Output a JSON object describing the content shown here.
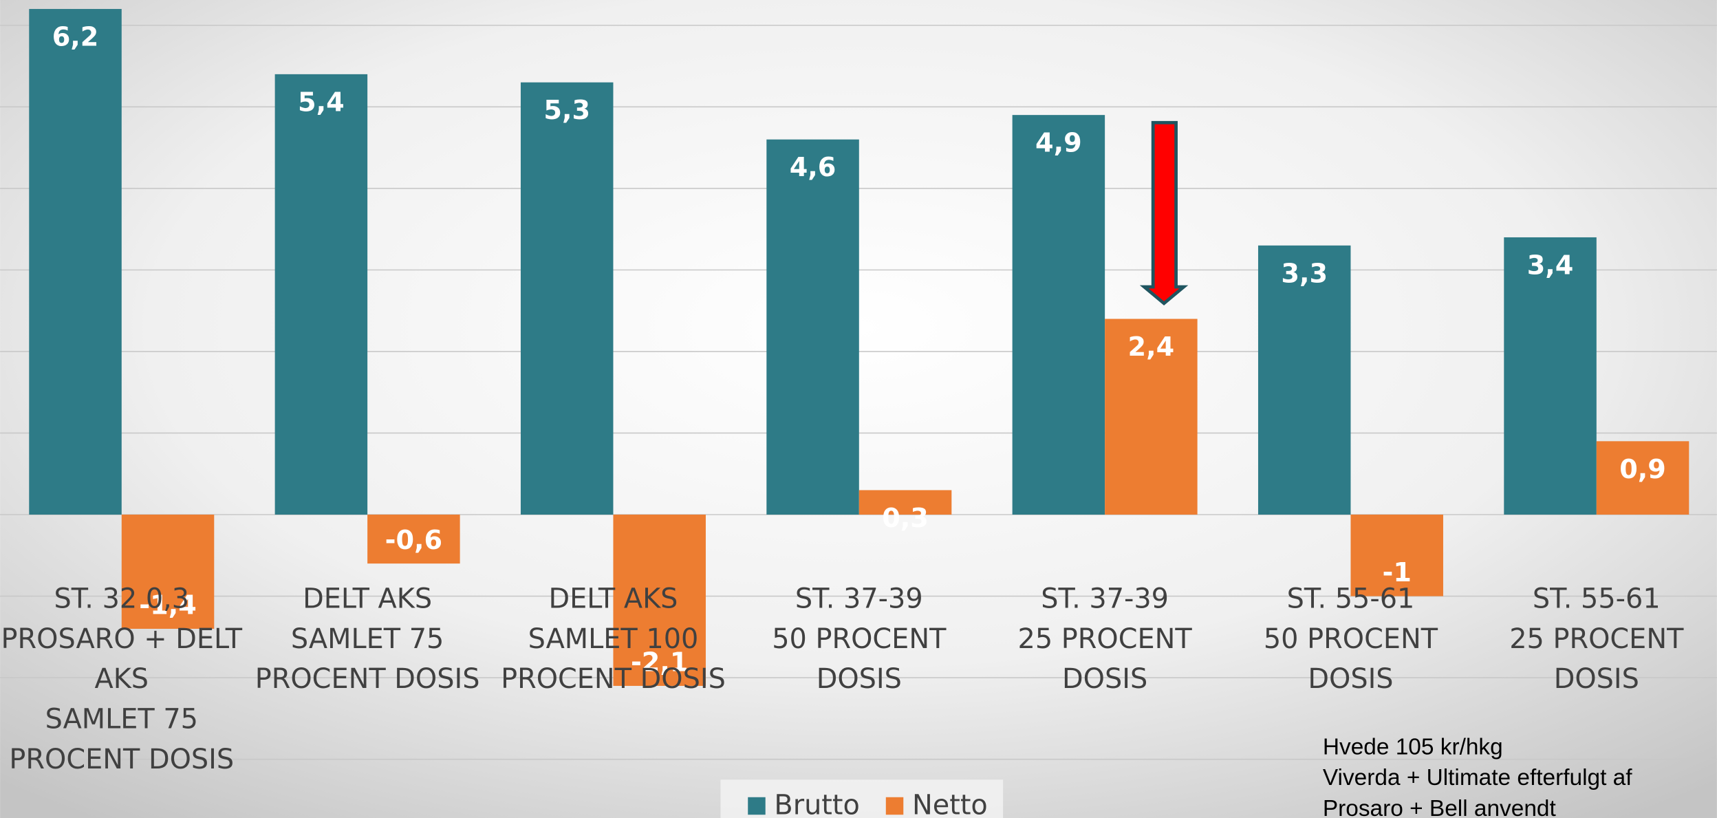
{
  "chart_data": {
    "type": "bar",
    "categories": [
      "ST. 32 0,3\nPROSARO + DELT\nAKS\nSAMLET 75\nPROCENT DOSIS",
      "DELT AKS\nSAMLET 75\nPROCENT DOSIS",
      "DELT AKS\nSAMLET 100\nPROCENT DOSIS",
      "ST. 37-39\n50 PROCENT\nDOSIS",
      "ST. 37-39\n25 PROCENT\nDOSIS",
      "ST. 55-61\n50 PROCENT\nDOSIS",
      "ST. 55-61\n25 PROCENT\nDOSIS"
    ],
    "series": [
      {
        "name": "Brutto",
        "color": "#2e7b87",
        "values": [
          6.2,
          5.4,
          5.3,
          4.6,
          4.9,
          3.3,
          3.4
        ],
        "value_labels": [
          "6,2",
          "5,4",
          "5,3",
          "4,6",
          "4,9",
          "3,3",
          "3,4"
        ]
      },
      {
        "name": "Netto",
        "color": "#ed7d31",
        "values": [
          -1.4,
          -0.6,
          -2.1,
          0.3,
          2.4,
          -1,
          0.9
        ],
        "value_labels": [
          "-1,4",
          "-0,6",
          "-2,1",
          "0,3",
          "2,4",
          "-1",
          "0,9"
        ]
      }
    ],
    "ylim": [
      -3.72,
      6.31
    ],
    "yticks": [
      -3,
      -2,
      -1,
      0,
      1,
      2,
      3,
      4,
      5,
      6
    ],
    "grid": true,
    "legend": "bottom",
    "annotation": [
      "Hvede 105 kr/hkg",
      "Viverda + Ultimate efterfulgt af",
      "Prosaro + Bell anvendt"
    ]
  }
}
